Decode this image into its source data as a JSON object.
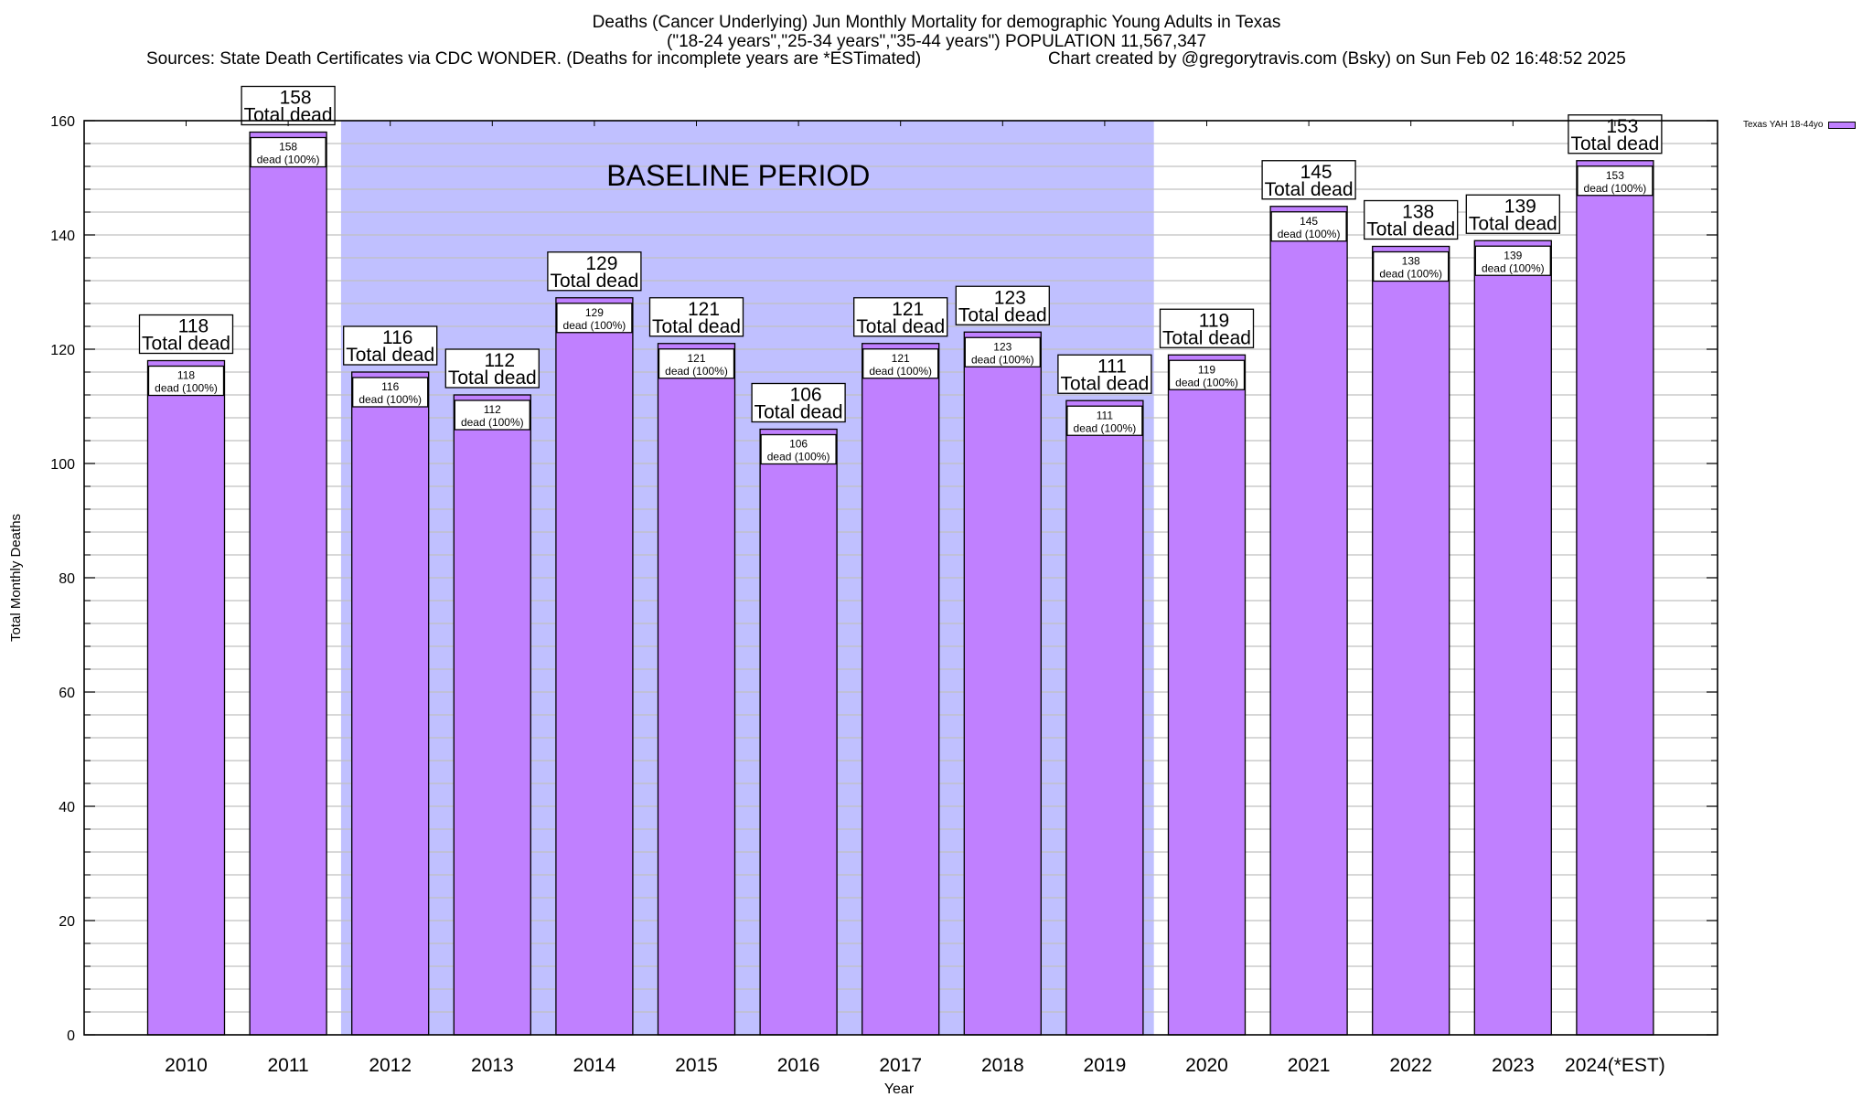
{
  "header": {
    "title": "Deaths (Cancer Underlying) Jun Monthly Mortality for demographic Young Adults in Texas",
    "subtitle": "(\"18-24 years\",\"25-34 years\",\"35-44 years\") POPULATION 11,567,347",
    "sources": "Sources: State Death Certificates via CDC WONDER. (Deaths for incomplete years are *ESTimated)",
    "credit": "Chart created by @gregorytravis.com (Bsky) on Sun Feb 02 16:48:52 2025"
  },
  "legend": {
    "label": "Texas YAH 18-44yo",
    "color": "#c080ff",
    "placement": "top-right-outside"
  },
  "colors": {
    "bar": "#c080ff",
    "baseline_band": "#c0c0ff",
    "grid": "#c0c0c0"
  },
  "chart_data": {
    "type": "bar",
    "title": "Deaths (Cancer Underlying) Jun Monthly Mortality for demographic Young Adults in Texas",
    "xlabel": "Year",
    "ylabel": "Total Monthly Deaths",
    "ylim": [
      0,
      160
    ],
    "yticks": [
      0,
      20,
      40,
      60,
      80,
      100,
      120,
      140,
      160
    ],
    "minor_tick_step": 4,
    "grid": true,
    "legend_position": "top-right",
    "categories": [
      "2010",
      "2011",
      "2012",
      "2013",
      "2014",
      "2015",
      "2016",
      "2017",
      "2018",
      "2019",
      "2020",
      "2021",
      "2022",
      "2023",
      "2024(*EST)"
    ],
    "series": [
      {
        "name": "Texas YAH 18-44yo",
        "values": [
          118,
          158,
          116,
          112,
          129,
          121,
          106,
          121,
          123,
          111,
          119,
          145,
          138,
          139,
          153
        ]
      }
    ],
    "top_label_suffix": "Total dead",
    "inner_label_suffix": "dead (100%)",
    "annotations": [
      {
        "text": "BASELINE PERIOD",
        "from_category": "2012",
        "to_category": "2019"
      }
    ]
  }
}
